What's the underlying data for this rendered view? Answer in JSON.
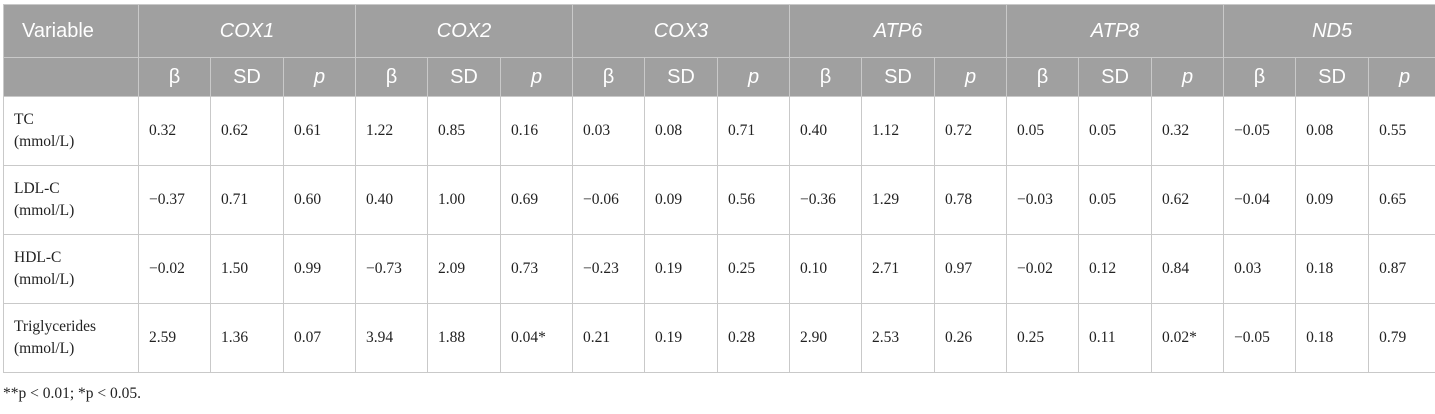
{
  "table": {
    "header_variable": "Variable",
    "genes": [
      "COX1",
      "COX2",
      "COX3",
      "ATP6",
      "ATP8",
      "ND5"
    ],
    "subheaders": [
      "β",
      "SD",
      "p"
    ],
    "rows": [
      {
        "label_line1": "TC",
        "label_line2": "(mmol/L)",
        "cells": [
          "0.32",
          "0.62",
          "0.61",
          "1.22",
          "0.85",
          "0.16",
          "0.03",
          "0.08",
          "0.71",
          "0.40",
          "1.12",
          "0.72",
          "0.05",
          "0.05",
          "0.32",
          "−0.05",
          "0.08",
          "0.55"
        ]
      },
      {
        "label_line1": "LDL-C",
        "label_line2": "(mmol/L)",
        "cells": [
          "−0.37",
          "0.71",
          "0.60",
          "0.40",
          "1.00",
          "0.69",
          "−0.06",
          "0.09",
          "0.56",
          "−0.36",
          "1.29",
          "0.78",
          "−0.03",
          "0.05",
          "0.62",
          "−0.04",
          "0.09",
          "0.65"
        ]
      },
      {
        "label_line1": "HDL-C",
        "label_line2": "(mmol/L)",
        "cells": [
          "−0.02",
          "1.50",
          "0.99",
          "−0.73",
          "2.09",
          "0.73",
          "−0.23",
          "0.19",
          "0.25",
          "0.10",
          "2.71",
          "0.97",
          "−0.02",
          "0.12",
          "0.84",
          "0.03",
          "0.18",
          "0.87"
        ]
      },
      {
        "label_line1": "Triglycerides",
        "label_line2": "(mmol/L)",
        "cells": [
          "2.59",
          "1.36",
          "0.07",
          "3.94",
          "1.88",
          "0.04*",
          "0.21",
          "0.19",
          "0.28",
          "2.90",
          "2.53",
          "0.26",
          "0.25",
          "0.11",
          "0.02*",
          "−0.05",
          "0.18",
          "0.79"
        ]
      }
    ]
  },
  "footnote": "**p < 0.01; *p < 0.05."
}
